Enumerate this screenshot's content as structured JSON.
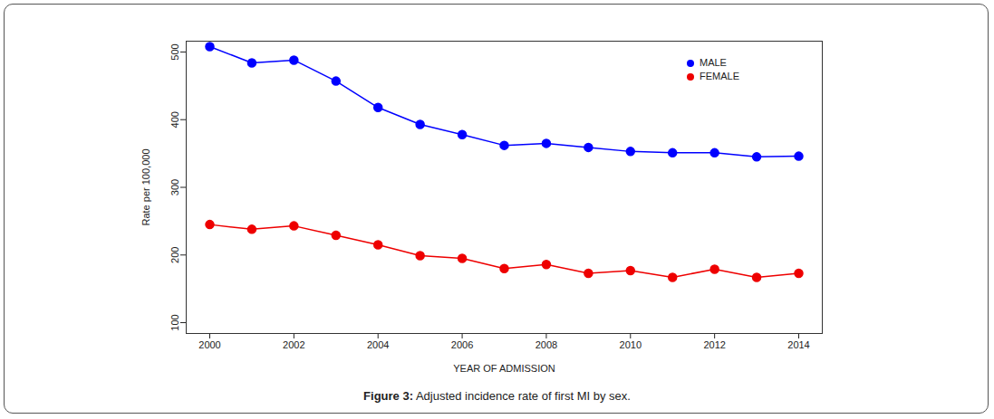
{
  "chart_data": {
    "type": "line",
    "title": "Figure 3: Adjusted incidence rate of first MI by sex.",
    "x_label": "YEAR OF ADMISSION",
    "y_label": "Rate per 100,000",
    "x": [
      2000,
      2001,
      2002,
      2003,
      2004,
      2005,
      2006,
      2007,
      2008,
      2009,
      2010,
      2011,
      2012,
      2013,
      2014
    ],
    "series": [
      {
        "name": "MALE",
        "color": "#0000ff",
        "marker": "circle",
        "values": [
          508,
          484,
          488,
          457,
          418,
          393,
          378,
          362,
          365,
          359,
          353,
          351,
          351,
          345,
          346
        ]
      },
      {
        "name": "FEMALE",
        "color": "#ee0000",
        "marker": "circle",
        "values": [
          245,
          238,
          243,
          229,
          215,
          199,
          195,
          180,
          186,
          173,
          177,
          167,
          179,
          167,
          173
        ]
      }
    ],
    "xlim": [
      1999.44,
      2014.56
    ],
    "xticks": [
      2000,
      2002,
      2004,
      2006,
      2008,
      2010,
      2012,
      2014
    ],
    "ylim": [
      84,
      516
    ],
    "yticks": [
      100,
      200,
      300,
      400,
      500
    ],
    "grid": false,
    "legend": "top-right"
  }
}
